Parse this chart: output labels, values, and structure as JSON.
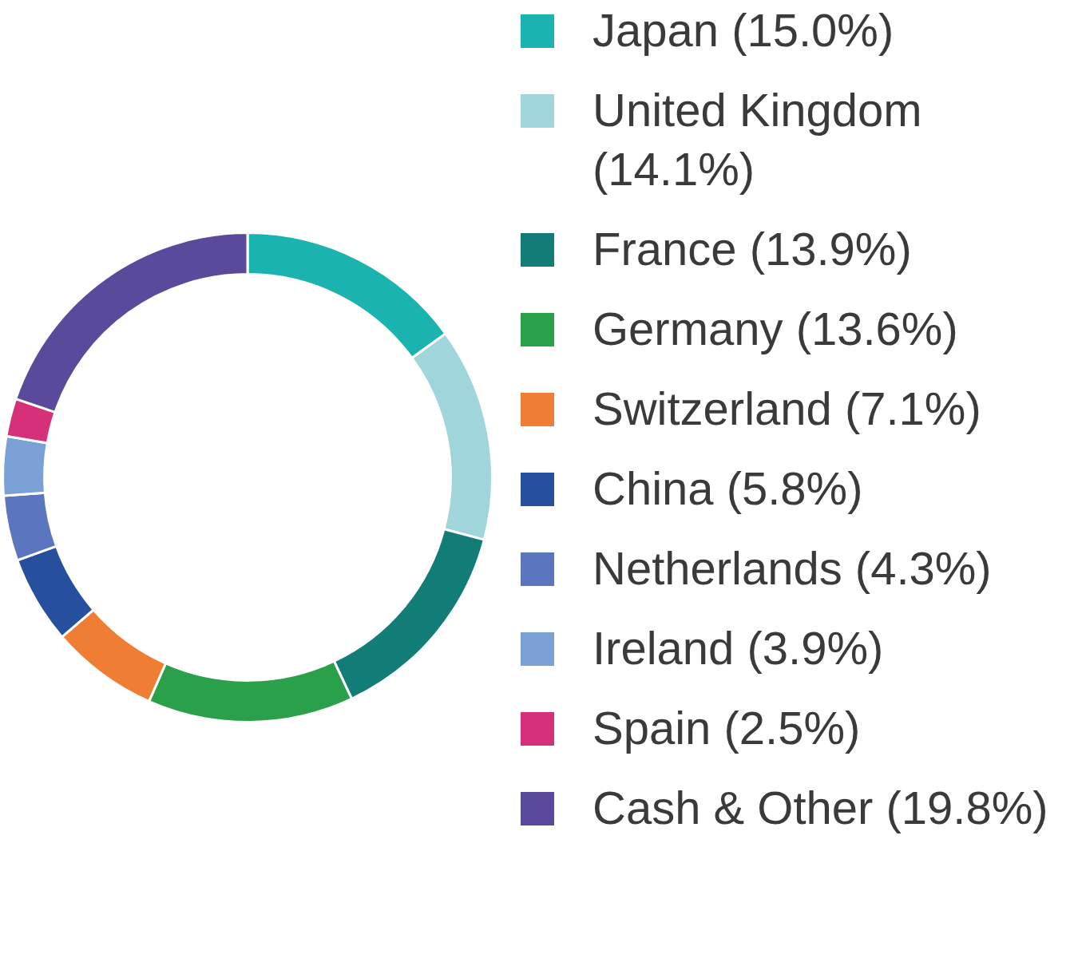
{
  "chart_data": {
    "type": "donut",
    "categories": [
      "Japan (15.0%)",
      "United Kingdom (14.1%)",
      "France (13.9%)",
      "Germany (13.6%)",
      "Switzerland (7.1%)",
      "China (5.8%)",
      "Netherlands (4.3%)",
      "Ireland (3.9%)",
      "Spain (2.5%)",
      "Cash & Other (19.8%)"
    ],
    "values": [
      15.0,
      14.1,
      13.9,
      13.6,
      7.1,
      5.8,
      4.3,
      3.9,
      2.5,
      19.8
    ],
    "colors": [
      "#1ab3b0",
      "#a0d5dc",
      "#127c77",
      "#2aa04a",
      "#ef7d33",
      "#26509e",
      "#5b76bf",
      "#7aa0d6",
      "#d6307a",
      "#5b4a9b"
    ],
    "legend": "right"
  }
}
